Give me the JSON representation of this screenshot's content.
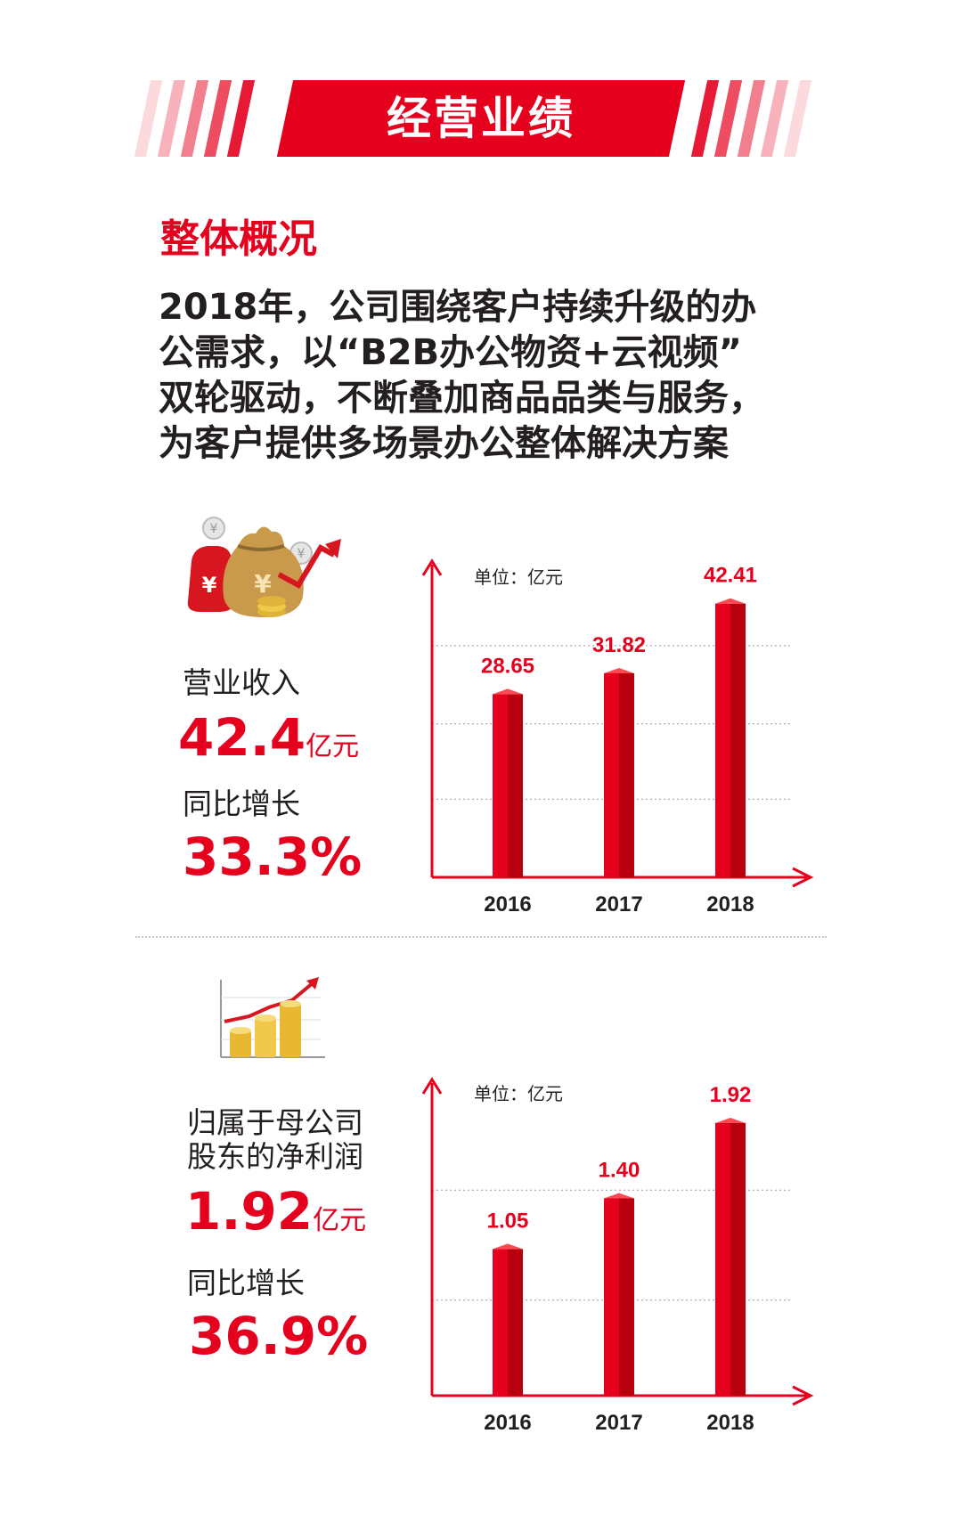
{
  "banner": {
    "title": "经营业绩"
  },
  "section_title": "整体概况",
  "intro_lines": [
    "2018年，公司围绕客户持续升级的办",
    "公需求，以“B2B办公物资+云视频”",
    "双轮驱动，不断叠加商品品类与服务，",
    "为客户提供多场景办公整体解决方案"
  ],
  "colors": {
    "accent": "#e5001e",
    "text": "#231f20"
  },
  "icons": {
    "revenue": "money-bag-icon",
    "profit": "coin-growth-icon"
  },
  "revenue": {
    "label": "营业收入",
    "value": "42.4",
    "unit": "亿元",
    "growth_label": "同比增长",
    "growth_value": "33.3%"
  },
  "profit": {
    "label_line1": "归属于母公司",
    "label_line2": "股东的净利润",
    "value": "1.92",
    "unit": "亿元",
    "growth_label": "同比增长",
    "growth_value": "36.9%"
  },
  "chart_data": [
    {
      "type": "bar",
      "unit_label": "单位：亿元",
      "categories": [
        "2016",
        "2017",
        "2018"
      ],
      "values": [
        28.65,
        31.82,
        42.41
      ],
      "value_labels": [
        "28.65",
        "31.82",
        "42.41"
      ],
      "ylim": [
        0,
        44
      ]
    },
    {
      "type": "bar",
      "unit_label": "单位：亿元",
      "categories": [
        "2016",
        "2017",
        "2018"
      ],
      "values": [
        1.05,
        1.4,
        1.92
      ],
      "value_labels": [
        "1.05",
        "1.40",
        "1.92"
      ],
      "ylim": [
        0,
        2.0
      ]
    }
  ]
}
